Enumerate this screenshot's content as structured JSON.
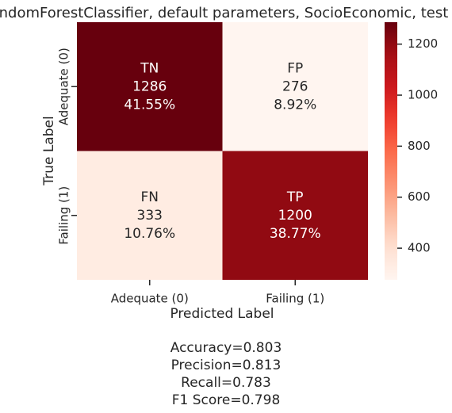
{
  "chart_data": {
    "type": "heatmap",
    "title": "RandomForestClassifier, default parameters, SocioEconomic, test set",
    "xlabel": "Predicted Label",
    "ylabel": "True Label",
    "x_categories": [
      "Adequate (0)",
      "Failing (1)"
    ],
    "y_categories": [
      "Adequate (0)",
      "Failing (1)"
    ],
    "values": [
      [
        1286,
        276
      ],
      [
        333,
        1200
      ]
    ],
    "cell_labels": [
      [
        "TN",
        "FP"
      ],
      [
        "FN",
        "TP"
      ]
    ],
    "percent_labels": [
      [
        "41.55%",
        "8.92%"
      ],
      [
        "10.76%",
        "38.77%"
      ]
    ],
    "colormap": "Reds",
    "clim": [
      276,
      1286
    ],
    "cticks": [
      400,
      600,
      800,
      1000,
      1200
    ],
    "annotations": [
      "Accuracy=0.803",
      "Precision=0.813",
      "Recall=0.783",
      "F1 Score=0.798"
    ]
  }
}
